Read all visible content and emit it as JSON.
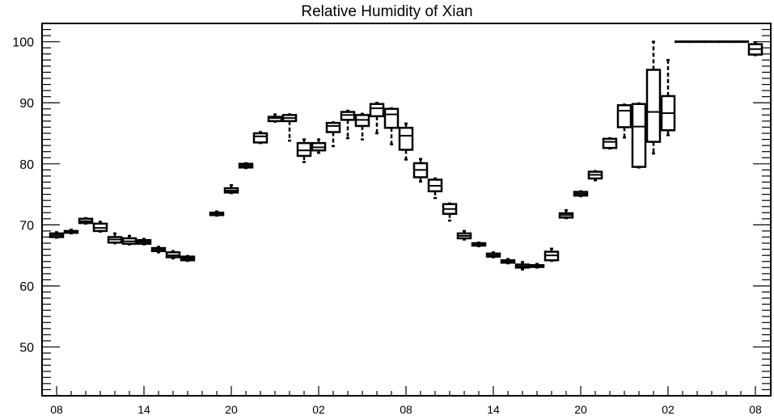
{
  "chart_data": {
    "type": "box",
    "title": "Relative Humidity of Xian",
    "xlabel": "",
    "ylabel": "",
    "ylim": [
      42,
      103
    ],
    "yticks": [
      50,
      60,
      70,
      80,
      90,
      100
    ],
    "xlim": [
      0,
      49
    ],
    "xticks": [
      {
        "pos": 0,
        "label": "08"
      },
      {
        "pos": 6,
        "label": "14"
      },
      {
        "pos": 12,
        "label": "20"
      },
      {
        "pos": 18,
        "label": "02"
      },
      {
        "pos": 24,
        "label": "08"
      },
      {
        "pos": 30,
        "label": "14"
      },
      {
        "pos": 36,
        "label": "20"
      },
      {
        "pos": 42,
        "label": "02"
      },
      {
        "pos": 48,
        "label": "08"
      }
    ],
    "grid": false,
    "boxes": [
      {
        "x": 0,
        "wl": 67.9,
        "q1": 68.0,
        "med": 68.3,
        "q3": 68.6,
        "wh": 68.8
      },
      {
        "x": 1,
        "wl": 68.6,
        "q1": 68.7,
        "med": 68.9,
        "q3": 69.0,
        "wh": 69.2
      },
      {
        "x": 2,
        "wl": 70.2,
        "q1": 70.3,
        "med": 70.6,
        "q3": 71.0,
        "wh": 71.1
      },
      {
        "x": 3,
        "wl": 68.9,
        "q1": 69.0,
        "med": 69.5,
        "q3": 70.2,
        "wh": 70.5
      },
      {
        "x": 4,
        "wl": 67.0,
        "q1": 67.1,
        "med": 67.6,
        "q3": 68.0,
        "wh": 68.6
      },
      {
        "x": 5,
        "wl": 66.8,
        "q1": 66.9,
        "med": 67.3,
        "q3": 67.8,
        "wh": 68.2
      },
      {
        "x": 6,
        "wl": 66.8,
        "q1": 66.9,
        "med": 67.2,
        "q3": 67.5,
        "wh": 67.7
      },
      {
        "x": 7,
        "wl": 65.5,
        "q1": 65.7,
        "med": 66.0,
        "q3": 66.2,
        "wh": 66.4
      },
      {
        "x": 8,
        "wl": 64.5,
        "q1": 64.7,
        "med": 65.0,
        "q3": 65.5,
        "wh": 65.7
      },
      {
        "x": 9,
        "wl": 64.1,
        "q1": 64.2,
        "med": 64.5,
        "q3": 64.8,
        "wh": 64.9
      },
      {
        "x": 11,
        "wl": 71.5,
        "q1": 71.6,
        "med": 71.9,
        "q3": 72.0,
        "wh": 72.2
      },
      {
        "x": 12,
        "wl": 75.2,
        "q1": 75.3,
        "med": 75.6,
        "q3": 76.0,
        "wh": 76.5
      },
      {
        "x": 13,
        "wl": 79.3,
        "q1": 79.4,
        "med": 79.7,
        "q3": 80.0,
        "wh": 80.1
      },
      {
        "x": 14,
        "wl": 83.4,
        "q1": 83.5,
        "med": 84.5,
        "q3": 85.0,
        "wh": 85.2
      },
      {
        "x": 15,
        "wl": 86.9,
        "q1": 87.0,
        "med": 87.5,
        "q3": 87.7,
        "wh": 88.1
      },
      {
        "x": 16,
        "wl": 83.8,
        "q1": 87.0,
        "med": 87.5,
        "q3": 88.0,
        "wh": 88.1
      },
      {
        "x": 17,
        "wl": 80.3,
        "q1": 81.3,
        "med": 82.2,
        "q3": 83.4,
        "wh": 84.0
      },
      {
        "x": 18,
        "wl": 81.8,
        "q1": 82.2,
        "med": 82.7,
        "q3": 83.4,
        "wh": 84.0
      },
      {
        "x": 19,
        "wl": 82.9,
        "q1": 85.2,
        "med": 86.2,
        "q3": 86.7,
        "wh": 86.8
      },
      {
        "x": 20,
        "wl": 84.2,
        "q1": 87.2,
        "med": 88.0,
        "q3": 88.5,
        "wh": 88.7
      },
      {
        "x": 21,
        "wl": 84.0,
        "q1": 86.2,
        "med": 87.2,
        "q3": 88.0,
        "wh": 88.2
      },
      {
        "x": 22,
        "wl": 85.0,
        "q1": 87.8,
        "med": 89.1,
        "q3": 89.8,
        "wh": 90.0
      },
      {
        "x": 23,
        "wl": 83.2,
        "q1": 85.9,
        "med": 88.1,
        "q3": 89.0,
        "wh": 89.1
      },
      {
        "x": 24,
        "wl": 80.7,
        "q1": 82.3,
        "med": 84.6,
        "q3": 85.9,
        "wh": 86.6
      },
      {
        "x": 25,
        "wl": 77.1,
        "q1": 77.8,
        "med": 79.0,
        "q3": 80.1,
        "wh": 80.8
      },
      {
        "x": 26,
        "wl": 74.4,
        "q1": 75.5,
        "med": 76.4,
        "q3": 77.4,
        "wh": 77.6
      },
      {
        "x": 27,
        "wl": 70.7,
        "q1": 71.8,
        "med": 72.6,
        "q3": 73.4,
        "wh": 73.5
      },
      {
        "x": 28,
        "wl": 67.6,
        "q1": 67.8,
        "med": 68.2,
        "q3": 68.6,
        "wh": 69.0
      },
      {
        "x": 29,
        "wl": 66.5,
        "q1": 66.6,
        "med": 66.8,
        "q3": 67.0,
        "wh": 67.1
      },
      {
        "x": 30,
        "wl": 64.7,
        "q1": 64.8,
        "med": 65.0,
        "q3": 65.3,
        "wh": 65.5
      },
      {
        "x": 31,
        "wl": 63.7,
        "q1": 63.8,
        "med": 64.0,
        "q3": 64.2,
        "wh": 64.4
      },
      {
        "x": 32,
        "wl": 62.7,
        "q1": 63.0,
        "med": 63.2,
        "q3": 63.5,
        "wh": 63.9
      },
      {
        "x": 33,
        "wl": 63.0,
        "q1": 63.1,
        "med": 63.2,
        "q3": 63.4,
        "wh": 63.6
      },
      {
        "x": 34,
        "wl": 64.1,
        "q1": 64.2,
        "med": 65.0,
        "q3": 65.6,
        "wh": 66.1
      },
      {
        "x": 35,
        "wl": 71.1,
        "q1": 71.2,
        "med": 71.6,
        "q3": 71.9,
        "wh": 72.4
      },
      {
        "x": 36,
        "wl": 74.7,
        "q1": 74.8,
        "med": 75.1,
        "q3": 75.4,
        "wh": 75.5
      },
      {
        "x": 37,
        "wl": 77.3,
        "q1": 77.6,
        "med": 78.2,
        "q3": 78.7,
        "wh": 78.8
      },
      {
        "x": 38,
        "wl": 82.5,
        "q1": 82.6,
        "med": 83.6,
        "q3": 84.1,
        "wh": 84.2
      },
      {
        "x": 39,
        "wl": 84.3,
        "q1": 86.0,
        "med": 88.7,
        "q3": 89.6,
        "wh": 89.7
      },
      {
        "x": 40,
        "wl": 79.4,
        "q1": 79.5,
        "med": 86.1,
        "q3": 89.8,
        "wh": 89.9
      },
      {
        "x": 41,
        "wl": 81.7,
        "q1": 83.6,
        "med": 88.5,
        "q3": 95.4,
        "wh": 100.0
      },
      {
        "x": 42,
        "wl": 84.7,
        "q1": 85.5,
        "med": 88.3,
        "q3": 91.1,
        "wh": 97.0
      },
      {
        "x": 43,
        "wl": 100.0,
        "q1": 100.0,
        "med": 100.0,
        "q3": 100.0,
        "wh": 100.0
      },
      {
        "x": 44,
        "wl": 100.0,
        "q1": 100.0,
        "med": 100.0,
        "q3": 100.0,
        "wh": 100.0
      },
      {
        "x": 45,
        "wl": 100.0,
        "q1": 100.0,
        "med": 100.0,
        "q3": 100.0,
        "wh": 100.0
      },
      {
        "x": 46,
        "wl": 100.0,
        "q1": 100.0,
        "med": 100.0,
        "q3": 100.0,
        "wh": 100.0
      },
      {
        "x": 47,
        "wl": 100.0,
        "q1": 100.0,
        "med": 100.0,
        "q3": 100.0,
        "wh": 100.0
      },
      {
        "x": 48,
        "wl": 97.8,
        "q1": 97.9,
        "med": 98.8,
        "q3": 99.6,
        "wh": 99.8
      }
    ]
  }
}
